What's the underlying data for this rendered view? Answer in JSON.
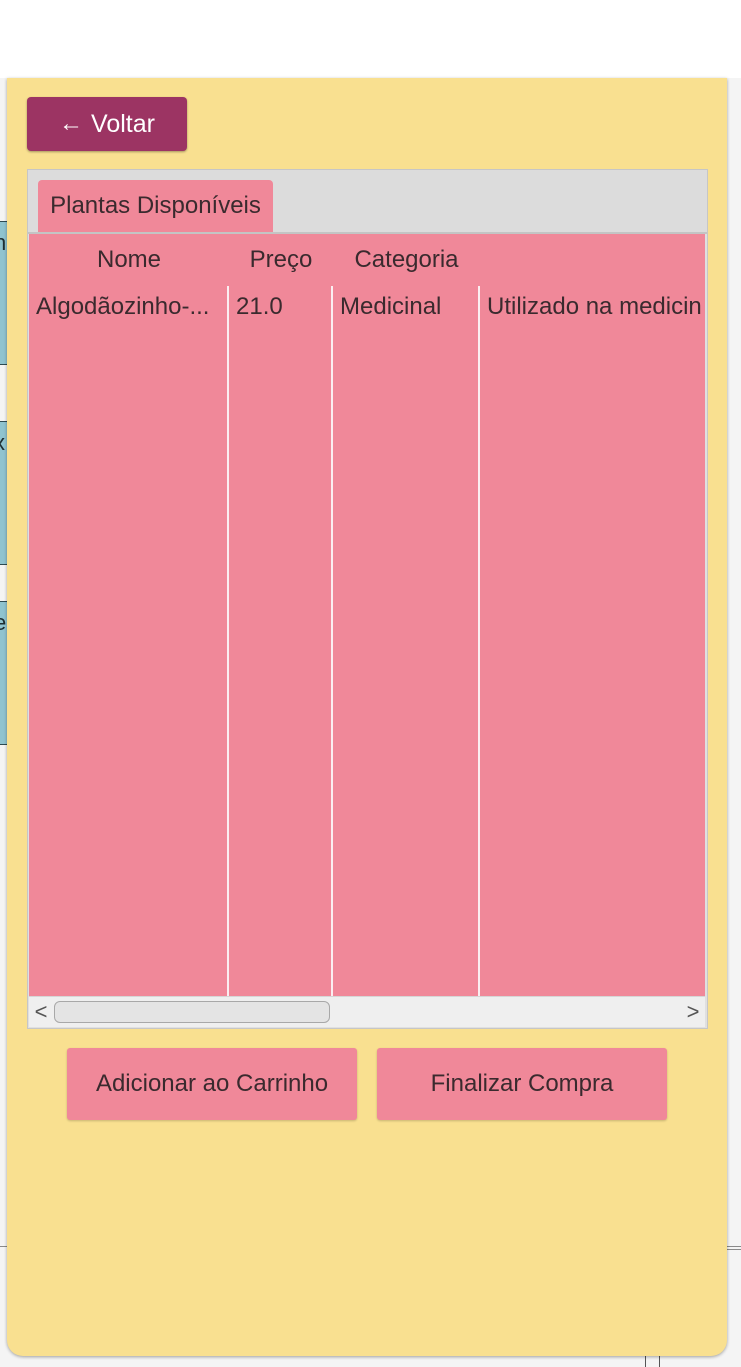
{
  "colors": {
    "dialog_bg": "#f9e090",
    "back_button_bg": "#9c3463",
    "pink_accent": "#f08899"
  },
  "background": {
    "strip_glyphs": [
      "n",
      "x",
      "e"
    ]
  },
  "toolbar": {
    "back_icon": "left-arrow-icon",
    "back_glyph": "←",
    "back_label": "Voltar"
  },
  "tabs": [
    {
      "label": "Plantas Disponíveis",
      "selected": true
    }
  ],
  "table": {
    "columns": [
      "Nome",
      "Preço",
      "Categoria",
      ""
    ],
    "rows": [
      [
        "Algodãozinho-...",
        "21.0",
        "Medicinal",
        "Utilizado na medicin"
      ]
    ]
  },
  "scrollbar": {
    "left_arrow": "<",
    "right_arrow": ">",
    "position": 0
  },
  "actions": {
    "add_to_cart": "Adicionar ao Carrinho",
    "checkout": "Finalizar Compra"
  }
}
